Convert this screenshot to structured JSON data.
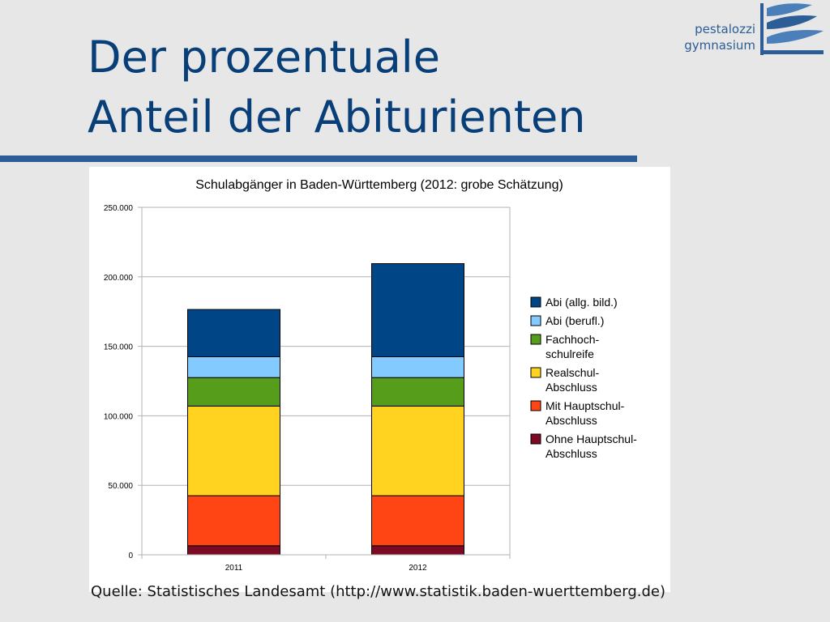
{
  "slide": {
    "title_lines": [
      "Der prozentuale",
      "Anteil der Abiturienten"
    ],
    "logo": {
      "line1": "pestalozzi",
      "line2": "gymnasium"
    },
    "source": "Quelle: Statistisches Landesamt (http://www.statistik.baden-wuerttemberg.de)",
    "colors": {
      "title": "#083f78",
      "accent": "#2c5d97",
      "background": "#e7e7e7"
    }
  },
  "chart_data": {
    "type": "bar",
    "stacked": true,
    "title": "Schulabgänger in Baden-Württemberg (2012: grobe Schätzung)",
    "xlabel": "",
    "ylabel": "",
    "categories": [
      "2011",
      "2012"
    ],
    "ylim": [
      0,
      250000
    ],
    "yticks": [
      0,
      50000,
      100000,
      150000,
      200000,
      250000
    ],
    "ytick_labels": [
      "0",
      "50.000",
      "100.000",
      "150.000",
      "200.000",
      "250.000"
    ],
    "grid": true,
    "legend_position": "right",
    "series": [
      {
        "name": "Ohne Hauptschul-Abschluss",
        "legend_lines": [
          "Ohne Hauptschul-",
          "Abschluss"
        ],
        "color": "#7b0a25",
        "values": [
          6500,
          6500
        ]
      },
      {
        "name": "Mit Hauptschul-Abschluss",
        "legend_lines": [
          "Mit Hauptschul-",
          "Abschluss"
        ],
        "color": "#ff4513",
        "values": [
          36000,
          36000
        ]
      },
      {
        "name": "Realschul-Abschluss",
        "legend_lines": [
          "Realschul-",
          "Abschluss"
        ],
        "color": "#ffd320",
        "values": [
          64500,
          64500
        ]
      },
      {
        "name": "Fachhoch-schulreife",
        "legend_lines": [
          "Fachhoch-",
          "schulreife"
        ],
        "color": "#579d1c",
        "values": [
          20500,
          20500
        ]
      },
      {
        "name": "Abi (berufl.)",
        "legend_lines": [
          "Abi (berufl.)"
        ],
        "color": "#83caff",
        "values": [
          15000,
          15000
        ]
      },
      {
        "name": "Abi (allg. bild.)",
        "legend_lines": [
          "Abi (allg. bild.)"
        ],
        "color": "#004586",
        "values": [
          34000,
          67000
        ]
      }
    ]
  }
}
